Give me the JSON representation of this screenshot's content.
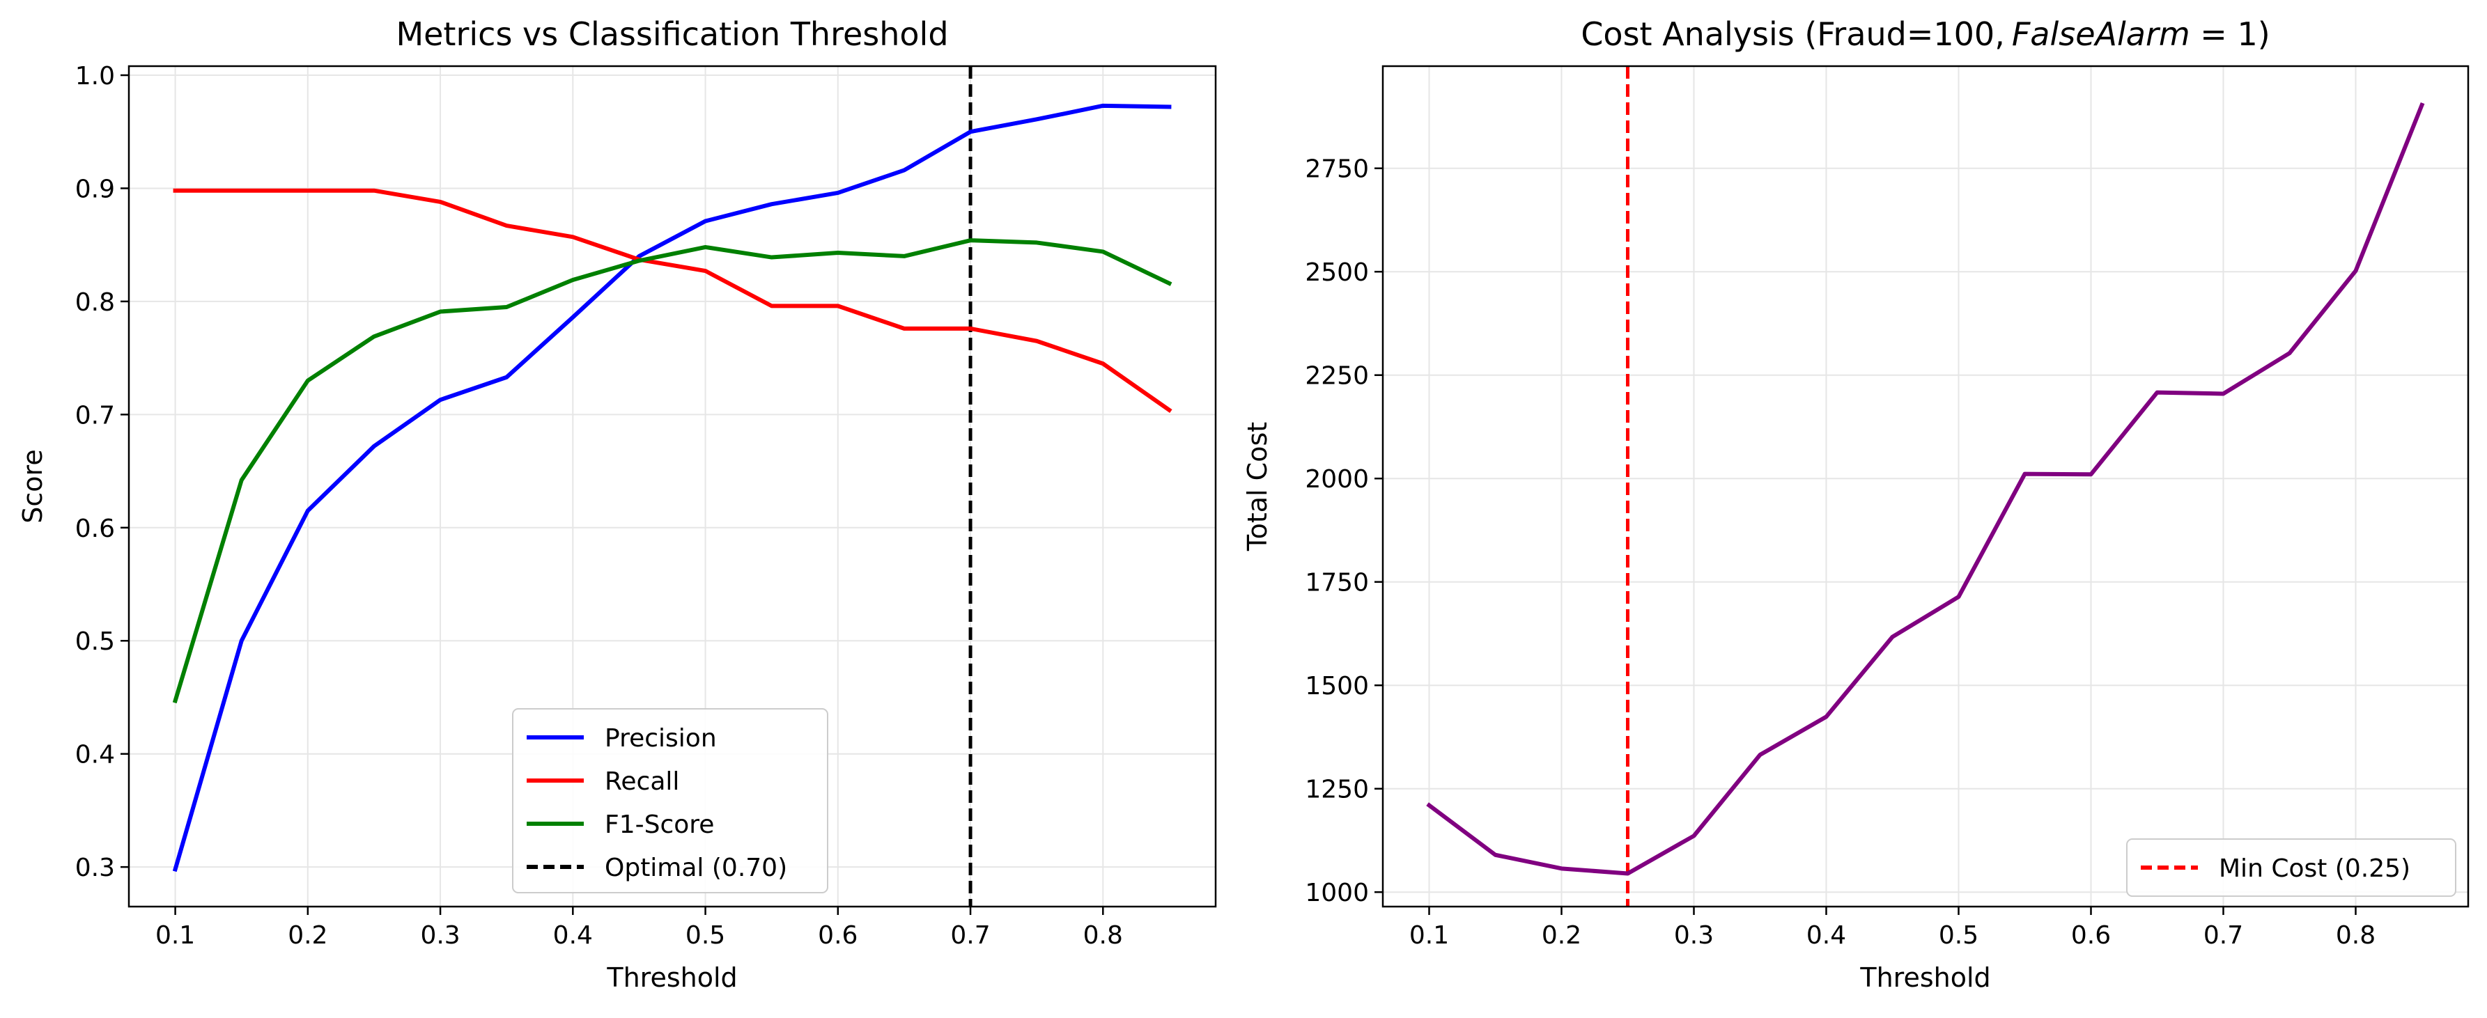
{
  "chart_data": [
    {
      "type": "line",
      "title": "Metrics vs Classification Threshold",
      "xlabel": "Threshold",
      "ylabel": "Score",
      "xlim": [
        0.065,
        0.885
      ],
      "ylim": [
        0.265,
        1.008
      ],
      "xticks": [
        0.1,
        0.2,
        0.3,
        0.4,
        0.5,
        0.6,
        0.7,
        0.8
      ],
      "xtick_labels": [
        "0.1",
        "0.2",
        "0.3",
        "0.4",
        "0.5",
        "0.6",
        "0.7",
        "0.8"
      ],
      "yticks": [
        0.3,
        0.4,
        0.5,
        0.6,
        0.7,
        0.8,
        0.9,
        1.0
      ],
      "ytick_labels": [
        "0.3",
        "0.4",
        "0.5",
        "0.6",
        "0.7",
        "0.8",
        "0.9",
        "1.0"
      ],
      "grid": true,
      "legend_position": "bottom-center",
      "x": [
        0.1,
        0.15,
        0.2,
        0.25,
        0.3,
        0.35,
        0.4,
        0.45,
        0.5,
        0.55,
        0.6,
        0.65,
        0.7,
        0.75,
        0.8,
        0.85
      ],
      "series": [
        {
          "name": "Precision",
          "color": "#0000ff",
          "style": "solid",
          "values": [
            0.298,
            0.5,
            0.615,
            0.672,
            0.713,
            0.733,
            0.786,
            0.84,
            0.871,
            0.886,
            0.896,
            0.916,
            0.95,
            0.961,
            0.973,
            0.972
          ]
        },
        {
          "name": "Recall",
          "color": "#ff0000",
          "style": "solid",
          "values": [
            0.898,
            0.898,
            0.898,
            0.898,
            0.888,
            0.867,
            0.857,
            0.837,
            0.827,
            0.796,
            0.796,
            0.776,
            0.776,
            0.765,
            0.745,
            0.704
          ]
        },
        {
          "name": "F1-Score",
          "color": "#008000",
          "style": "solid",
          "values": [
            0.447,
            0.642,
            0.73,
            0.769,
            0.791,
            0.795,
            0.819,
            0.836,
            0.848,
            0.839,
            0.843,
            0.84,
            0.854,
            0.852,
            0.844,
            0.816
          ]
        }
      ],
      "vlines": [
        {
          "name": "Optimal (0.70)",
          "x": 0.7,
          "color": "#000000",
          "style": "dashed"
        }
      ]
    },
    {
      "type": "line",
      "title": "Cost Analysis (Fraud=100, FalseAlarm = 1)",
      "title_parts": {
        "plain": "Cost Analysis (Fraud=100,",
        "math": "FalseAlarm",
        "tail": " = 1)"
      },
      "xlabel": "Threshold",
      "ylabel": "Total Cost",
      "xlim": [
        0.065,
        0.885
      ],
      "ylim": [
        965,
        2997
      ],
      "xticks": [
        0.1,
        0.2,
        0.3,
        0.4,
        0.5,
        0.6,
        0.7,
        0.8
      ],
      "xtick_labels": [
        "0.1",
        "0.2",
        "0.3",
        "0.4",
        "0.5",
        "0.6",
        "0.7",
        "0.8"
      ],
      "yticks": [
        1000,
        1250,
        1500,
        1750,
        2000,
        2250,
        2500,
        2750
      ],
      "ytick_labels": [
        "1000",
        "1250",
        "1500",
        "1750",
        "2000",
        "2250",
        "2500",
        "2750"
      ],
      "grid": true,
      "legend_position": "bottom-right",
      "x": [
        0.1,
        0.15,
        0.2,
        0.25,
        0.3,
        0.35,
        0.4,
        0.45,
        0.5,
        0.55,
        0.6,
        0.65,
        0.7,
        0.75,
        0.8,
        0.85
      ],
      "series": [
        {
          "name": "",
          "color": "#800080",
          "style": "solid",
          "values": [
            1210,
            1090,
            1057,
            1045,
            1136,
            1332,
            1424,
            1617,
            1714,
            2011,
            2010,
            2208,
            2205,
            2303,
            2502,
            2903
          ]
        }
      ],
      "vlines": [
        {
          "name": "Min Cost (0.25)",
          "x": 0.25,
          "color": "#ff0000",
          "style": "dashed"
        }
      ]
    }
  ]
}
